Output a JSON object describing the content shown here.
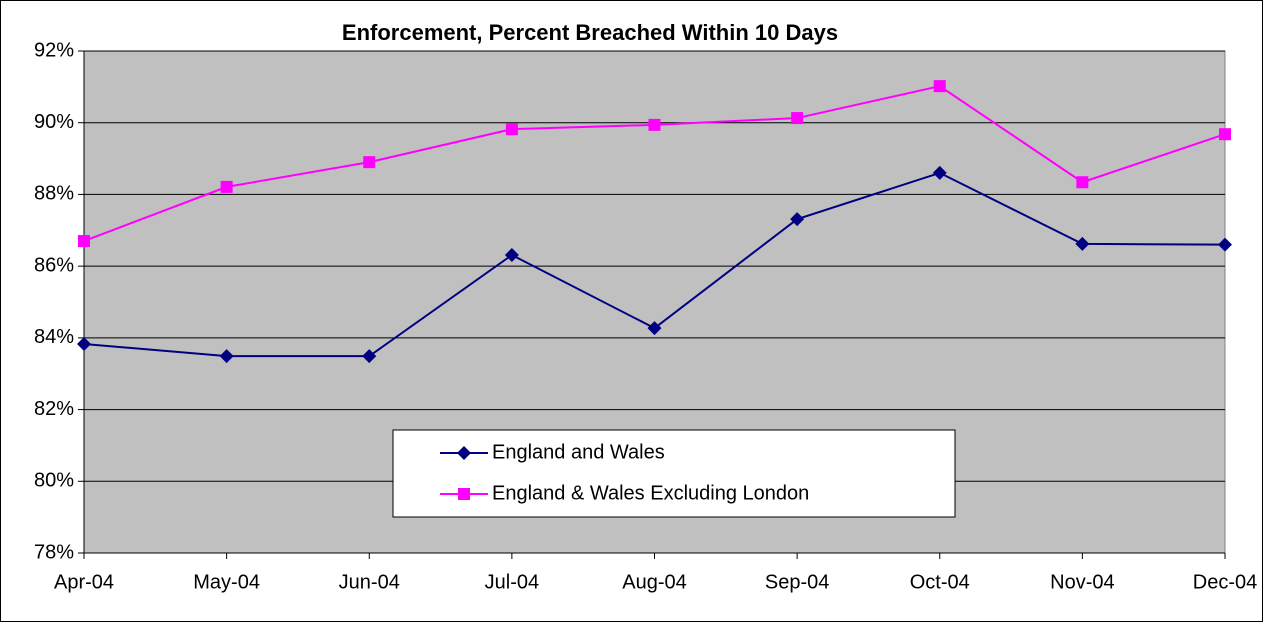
{
  "chart_data": {
    "type": "line",
    "title": "Enforcement, Percent Breached Within 10 Days",
    "categories": [
      "Apr-04",
      "May-04",
      "Jun-04",
      "Jul-04",
      "Aug-04",
      "Sep-04",
      "Oct-04",
      "Nov-04",
      "Dec-04"
    ],
    "series": [
      {
        "name": "England and Wales",
        "color": "#000080",
        "marker": "diamond",
        "values": [
          83.83,
          83.49,
          83.49,
          86.31,
          84.27,
          87.31,
          88.6,
          86.62,
          86.6
        ]
      },
      {
        "name": "England & Wales Excluding London",
        "color": "#ff00ff",
        "marker": "square",
        "values": [
          86.7,
          88.21,
          88.9,
          89.82,
          89.94,
          90.13,
          91.02,
          88.34,
          89.68
        ]
      }
    ],
    "ylim": [
      78,
      92
    ],
    "yticks": [
      {
        "value": 78,
        "label": "78%"
      },
      {
        "value": 80,
        "label": "80%"
      },
      {
        "value": 82,
        "label": "82%"
      },
      {
        "value": 84,
        "label": "84%"
      },
      {
        "value": 86,
        "label": "86%"
      },
      {
        "value": 88,
        "label": "88%"
      },
      {
        "value": 90,
        "label": "90%"
      },
      {
        "value": 92,
        "label": "92%"
      }
    ],
    "grid": true,
    "plot_background": "#c0c0c0"
  }
}
